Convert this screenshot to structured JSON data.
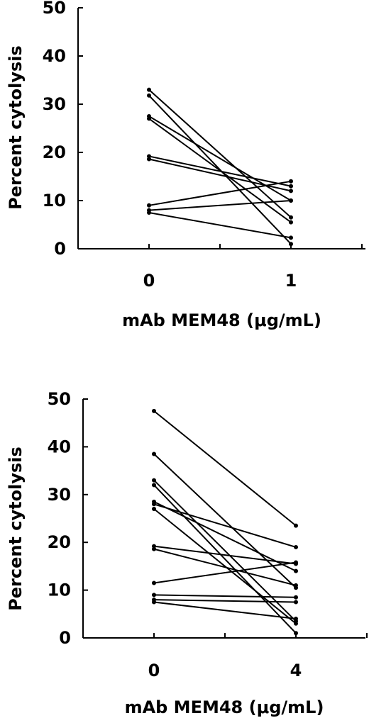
{
  "chart_data": [
    {
      "type": "line",
      "xlabel": "mAb MEM48 (μg/mL)",
      "ylabel": "Percent cytolysis",
      "x": [
        "0",
        "1"
      ],
      "ylim": [
        0,
        50
      ],
      "yticks": [
        0,
        10,
        20,
        30,
        40,
        50
      ],
      "grid": false,
      "series": [
        {
          "values": [
            33.0,
            6.5
          ]
        },
        {
          "values": [
            31.8,
            1.0
          ]
        },
        {
          "values": [
            27.5,
            10.0
          ]
        },
        {
          "values": [
            27.0,
            5.5
          ]
        },
        {
          "values": [
            19.2,
            13.0
          ]
        },
        {
          "values": [
            18.6,
            12.0
          ]
        },
        {
          "values": [
            9.0,
            14.0
          ]
        },
        {
          "values": [
            8.0,
            10.0
          ]
        },
        {
          "values": [
            7.5,
            2.3
          ]
        }
      ]
    },
    {
      "type": "line",
      "xlabel": "mAb MEM48 (μg/mL)",
      "ylabel": "Percent cytolysis",
      "x": [
        "0",
        "4"
      ],
      "ylim": [
        0,
        50
      ],
      "yticks": [
        0,
        10,
        20,
        30,
        40,
        50
      ],
      "grid": false,
      "series": [
        {
          "values": [
            47.5,
            23.5
          ]
        },
        {
          "values": [
            38.5,
            10.5
          ]
        },
        {
          "values": [
            33.0,
            3.5
          ]
        },
        {
          "values": [
            32.0,
            1.0
          ]
        },
        {
          "values": [
            28.5,
            14.0
          ]
        },
        {
          "values": [
            28.0,
            19.0
          ]
        },
        {
          "values": [
            27.0,
            3.0
          ]
        },
        {
          "values": [
            19.2,
            15.5
          ]
        },
        {
          "values": [
            18.6,
            11.0
          ]
        },
        {
          "values": [
            11.5,
            15.8
          ]
        },
        {
          "values": [
            9.0,
            8.5
          ]
        },
        {
          "values": [
            8.0,
            7.5
          ]
        },
        {
          "values": [
            7.5,
            4.0
          ]
        }
      ]
    }
  ]
}
